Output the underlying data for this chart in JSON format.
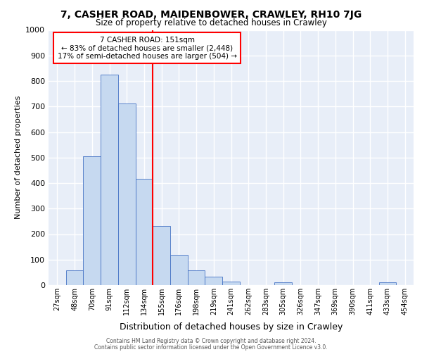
{
  "title1": "7, CASHER ROAD, MAIDENBOWER, CRAWLEY, RH10 7JG",
  "title2": "Size of property relative to detached houses in Crawley",
  "xlabel": "Distribution of detached houses by size in Crawley",
  "ylabel": "Number of detached properties",
  "footer1": "Contains HM Land Registry data © Crown copyright and database right 2024.",
  "footer2": "Contains public sector information licensed under the Open Government Licence v3.0.",
  "categories": [
    "27sqm",
    "48sqm",
    "70sqm",
    "91sqm",
    "112sqm",
    "134sqm",
    "155sqm",
    "176sqm",
    "198sqm",
    "219sqm",
    "241sqm",
    "262sqm",
    "283sqm",
    "305sqm",
    "326sqm",
    "347sqm",
    "369sqm",
    "390sqm",
    "411sqm",
    "433sqm",
    "454sqm"
  ],
  "values": [
    0,
    57,
    505,
    825,
    712,
    417,
    232,
    118,
    57,
    33,
    13,
    0,
    0,
    12,
    0,
    0,
    0,
    0,
    0,
    10,
    0
  ],
  "bar_color": "#c6d9f0",
  "bar_edge_color": "#4472c4",
  "red_line_x": 6.0,
  "annotation_title": "7 CASHER ROAD: 151sqm",
  "annotation_line1": "← 83% of detached houses are smaller (2,448)",
  "annotation_line2": "17% of semi-detached houses are larger (504) →",
  "ylim": [
    0,
    1000
  ],
  "yticks": [
    0,
    100,
    200,
    300,
    400,
    500,
    600,
    700,
    800,
    900,
    1000
  ],
  "bg_color": "#ffffff",
  "plot_bg_color": "#e8eef8",
  "grid_color": "#ffffff"
}
